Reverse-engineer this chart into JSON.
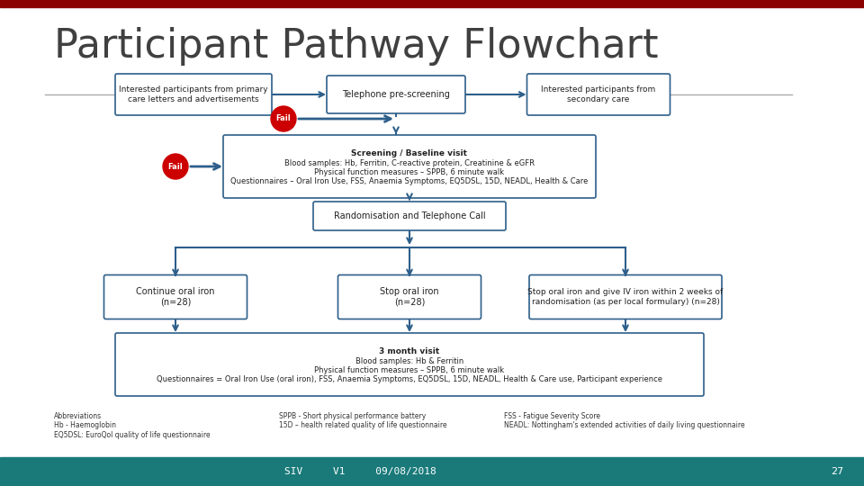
{
  "title": "Participant Pathway Flowchart",
  "title_fontsize": 32,
  "title_color": "#404040",
  "title_font": "sans-serif",
  "bg_color": "#ffffff",
  "footer_bar1_color": "#8B0000",
  "footer_bar2_color": "#1a7a7a",
  "footer_text": "SIV     V1     09/08/2018",
  "footer_page": "27",
  "footer_text_color": "#ffffff",
  "box_border_color": "#2d5f8a",
  "box_fill_color": "#ffffff",
  "arrow_color": "#2d5f8a",
  "fail_circle_color": "#cc0000",
  "fail_text_color": "#ffffff",
  "boxes": {
    "top_left": "Interested participants from primary\ncare letters and advertisements",
    "top_center": "Telephone pre-screening",
    "top_right": "Interested participants from\nsecondary care",
    "screening": "Screening / Baseline visit\nBlood samples: Hb, Ferritin, C-reactive protein, Creatinine & eGFR\nPhysical function measures – SPPB, 6 minute walk\nQuestionnaires – Oral Iron Use, FSS, Anaemia Symptoms, EQ5DSL, 15D, NEADL, Health & Care",
    "randomisation": "Randomisation and Telephone Call",
    "arm1": "Continue oral iron\n(n=28)",
    "arm2": "Stop oral iron\n(n=28)",
    "arm3": "Stop oral iron and give IV iron within 2 weeks of\nrandomisation (as per local formulary) (n=28)",
    "followup": "3 month visit\nBlood samples: Hb & Ferritin\nPhysical function measures – SPPB, 6 minute walk\nQuestionnaires = Oral Iron Use (oral iron), FSS, Anaemia Symptoms, EQ5DSL, 15D, NEADL, Health & Care use, Participant experience"
  },
  "abbreviations": "Abbreviations\nHb - Haemoglobin\nEQ5DSL: EuroQol quality of life questionnaire",
  "abbreviations2": "SPPB - Short physical performance battery\n15D – health related quality of life questionnaire",
  "abbreviations3": "FSS - Fatigue Severity Score\nNEADL: Nottingham's extended activities of daily living questionnaire"
}
